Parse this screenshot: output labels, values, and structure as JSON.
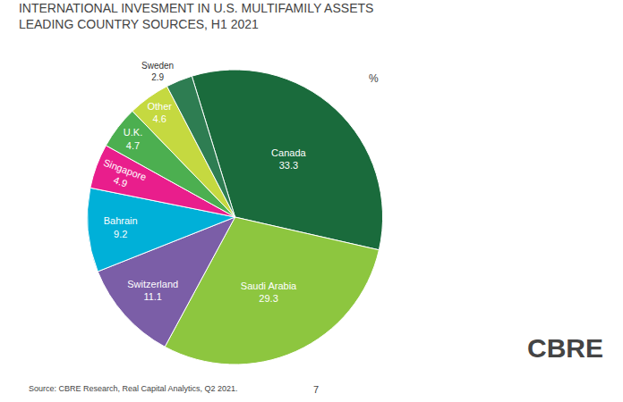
{
  "chart_data": {
    "type": "pie",
    "title": "INTERNATIONAL INVESMENT IN U.S. MULTIFAMILY ASSETS",
    "subtitle": "LEADING COUNTRY SOURCES, H1 2021",
    "categories": [
      "Canada",
      "Saudi Arabia",
      "Switzerland",
      "Bahrain",
      "Singapore",
      "U.K.",
      "Other",
      "Sweden"
    ],
    "values": [
      33.3,
      29.3,
      11.1,
      9.2,
      4.9,
      4.7,
      4.6,
      2.9
    ],
    "colors": [
      "#1a6b3c",
      "#8dc63f",
      "#7b5ea7",
      "#00b0d8",
      "#e91e8c",
      "#4caf50",
      "#c5d940",
      "#2e7d52"
    ],
    "data_labels": true,
    "annotations": [
      "%",
      "Source: CBRE Research, Real Capital Analytics, Q2 2021.",
      "7",
      "CBRE"
    ]
  }
}
